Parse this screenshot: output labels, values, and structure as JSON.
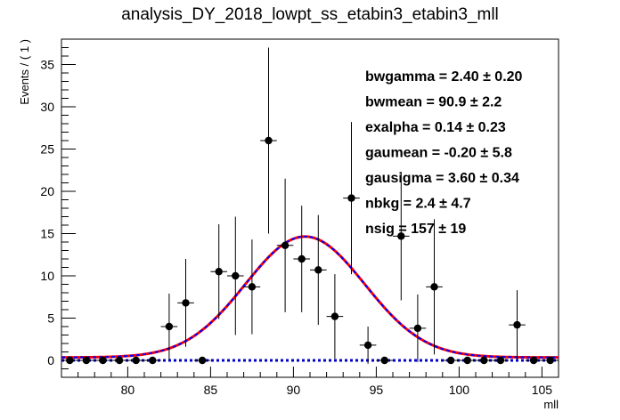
{
  "chart_data": {
    "type": "scatter",
    "title": "analysis_DY_2018_lowpt_ss_etabin3_etabin3_mll",
    "xlabel": "mll",
    "ylabel": "Events / ( 1 )",
    "xlim": [
      76,
      106
    ],
    "ylim": [
      -2,
      38
    ],
    "xticks": [
      80,
      85,
      90,
      95,
      100,
      105
    ],
    "yticks": [
      0,
      5,
      10,
      15,
      20,
      25,
      30,
      35
    ],
    "points": [
      {
        "x": 76.5,
        "y": 0,
        "err": 0
      },
      {
        "x": 77.5,
        "y": 0,
        "err": 0
      },
      {
        "x": 78.5,
        "y": 0,
        "err": 0
      },
      {
        "x": 79.5,
        "y": 0,
        "err": 0
      },
      {
        "x": 80.5,
        "y": 0,
        "err": 0
      },
      {
        "x": 81.5,
        "y": 0,
        "err": 0
      },
      {
        "x": 82.5,
        "y": 4,
        "err": 3.9
      },
      {
        "x": 83.5,
        "y": 6.8,
        "err": 5.2
      },
      {
        "x": 84.5,
        "y": 0,
        "err": 0
      },
      {
        "x": 85.5,
        "y": 10.5,
        "err": 5.6
      },
      {
        "x": 86.5,
        "y": 10,
        "err": 7.0
      },
      {
        "x": 87.5,
        "y": 8.7,
        "err": 5.6
      },
      {
        "x": 88.5,
        "y": 26,
        "err": 11.0
      },
      {
        "x": 89.5,
        "y": 13.6,
        "err": 7.9
      },
      {
        "x": 90.5,
        "y": 12,
        "err": 6.3
      },
      {
        "x": 91.5,
        "y": 10.7,
        "err": 6.5
      },
      {
        "x": 92.5,
        "y": 5.2,
        "err": 5.0
      },
      {
        "x": 93.5,
        "y": 19.2,
        "err": 9.0
      },
      {
        "x": 94.5,
        "y": 1.8,
        "err": 2.2
      },
      {
        "x": 95.5,
        "y": 0,
        "err": 0
      },
      {
        "x": 96.5,
        "y": 14.7,
        "err": 7.6
      },
      {
        "x": 97.5,
        "y": 3.8,
        "err": 4.0
      },
      {
        "x": 98.5,
        "y": 8.7,
        "err": 8.0
      },
      {
        "x": 99.5,
        "y": 0,
        "err": 0
      },
      {
        "x": 100.5,
        "y": 0,
        "err": 0
      },
      {
        "x": 101.5,
        "y": 0,
        "err": 0
      },
      {
        "x": 102.5,
        "y": 0,
        "err": 0
      },
      {
        "x": 103.5,
        "y": 4.2,
        "err": 4.1
      },
      {
        "x": 104.5,
        "y": 0,
        "err": 0
      },
      {
        "x": 105.5,
        "y": 0,
        "err": 0
      }
    ],
    "fit": {
      "mean": 90.7,
      "sigma": 3.6,
      "amplitude": 14.3,
      "baseline": 0.35
    },
    "colors": {
      "total_fit": "#ff0000",
      "signal_fit": "#0000ff",
      "background_fit": "#0000cc",
      "points": "#000000"
    },
    "params": [
      {
        "label": "bwgamma =  2.40   ± 0.20"
      },
      {
        "label": "bwmean =  90.9   ± 2.2"
      },
      {
        "label": "exalpha =  0.14   ± 0.23"
      },
      {
        "label": "gaumean = -0.20   ± 5.8"
      },
      {
        "label": "gausigma =  3.60   ± 0.34"
      },
      {
        "label": "nbkg =  2.4   ± 4.7"
      },
      {
        "label": "nsig =  157   ± 19"
      }
    ]
  }
}
